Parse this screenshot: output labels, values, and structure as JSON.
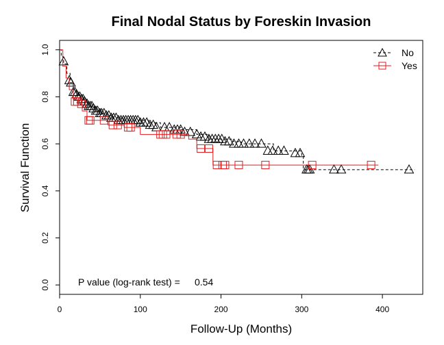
{
  "chart_data": {
    "type": "line",
    "subtype": "kaplan-meier",
    "title": "Final Nodal Status by Foreskin Invasion",
    "xlabel": "Follow-Up (Months)",
    "ylabel": "Survival Function",
    "xlim": [
      0,
      450
    ],
    "ylim": [
      -0.04,
      1.04
    ],
    "xticks": [
      0,
      100,
      200,
      300,
      400
    ],
    "yticks": [
      0.0,
      0.2,
      0.4,
      0.6,
      0.8,
      1.0
    ],
    "xtick_labels": [
      "0",
      "100",
      "200",
      "300",
      "400"
    ],
    "ytick_labels": [
      "0.0",
      "0.2",
      "0.4",
      "0.6",
      "0.8",
      "1.0"
    ],
    "grid": false,
    "legend_position": "top-right",
    "annotation": {
      "label": "P value (log-rank test) =",
      "value": "0.54"
    },
    "series": [
      {
        "name": "No",
        "color": "#000000",
        "line_style": "dashed",
        "marker": "triangle",
        "steps": [
          [
            0,
            1.0
          ],
          [
            2,
            0.97
          ],
          [
            5,
            0.94
          ],
          [
            9,
            0.9
          ],
          [
            13,
            0.86
          ],
          [
            17,
            0.83
          ],
          [
            21,
            0.81
          ],
          [
            26,
            0.79
          ],
          [
            31,
            0.77
          ],
          [
            37,
            0.76
          ],
          [
            43,
            0.74
          ],
          [
            50,
            0.73
          ],
          [
            58,
            0.72
          ],
          [
            66,
            0.71
          ],
          [
            80,
            0.7
          ],
          [
            110,
            0.69
          ],
          [
            125,
            0.67
          ],
          [
            150,
            0.66
          ],
          [
            170,
            0.64
          ],
          [
            185,
            0.62
          ],
          [
            215,
            0.61
          ],
          [
            225,
            0.6
          ],
          [
            265,
            0.57
          ],
          [
            300,
            0.55
          ],
          [
            302,
            0.49
          ],
          [
            440,
            0.49
          ]
        ],
        "censored": [
          [
            5,
            0.95
          ],
          [
            12,
            0.87
          ],
          [
            14,
            0.86
          ],
          [
            17,
            0.82
          ],
          [
            19,
            0.82
          ],
          [
            21,
            0.81
          ],
          [
            23,
            0.8
          ],
          [
            25,
            0.8
          ],
          [
            27,
            0.79
          ],
          [
            29,
            0.79
          ],
          [
            31,
            0.78
          ],
          [
            34,
            0.77
          ],
          [
            36,
            0.76
          ],
          [
            38,
            0.76
          ],
          [
            40,
            0.76
          ],
          [
            42,
            0.75
          ],
          [
            45,
            0.74
          ],
          [
            47,
            0.74
          ],
          [
            50,
            0.73
          ],
          [
            52,
            0.73
          ],
          [
            55,
            0.73
          ],
          [
            58,
            0.72
          ],
          [
            61,
            0.72
          ],
          [
            64,
            0.71
          ],
          [
            67,
            0.71
          ],
          [
            70,
            0.71
          ],
          [
            73,
            0.7
          ],
          [
            76,
            0.7
          ],
          [
            79,
            0.7
          ],
          [
            82,
            0.7
          ],
          [
            85,
            0.7
          ],
          [
            88,
            0.7
          ],
          [
            91,
            0.7
          ],
          [
            94,
            0.7
          ],
          [
            97,
            0.7
          ],
          [
            100,
            0.69
          ],
          [
            104,
            0.69
          ],
          [
            108,
            0.69
          ],
          [
            112,
            0.68
          ],
          [
            116,
            0.68
          ],
          [
            120,
            0.67
          ],
          [
            130,
            0.67
          ],
          [
            136,
            0.67
          ],
          [
            142,
            0.66
          ],
          [
            146,
            0.66
          ],
          [
            150,
            0.66
          ],
          [
            155,
            0.65
          ],
          [
            162,
            0.65
          ],
          [
            170,
            0.64
          ],
          [
            175,
            0.63
          ],
          [
            180,
            0.63
          ],
          [
            185,
            0.62
          ],
          [
            189,
            0.62
          ],
          [
            193,
            0.62
          ],
          [
            197,
            0.62
          ],
          [
            201,
            0.62
          ],
          [
            205,
            0.61
          ],
          [
            210,
            0.61
          ],
          [
            216,
            0.6
          ],
          [
            222,
            0.6
          ],
          [
            228,
            0.6
          ],
          [
            235,
            0.6
          ],
          [
            242,
            0.6
          ],
          [
            250,
            0.6
          ],
          [
            258,
            0.57
          ],
          [
            264,
            0.57
          ],
          [
            271,
            0.57
          ],
          [
            278,
            0.57
          ],
          [
            292,
            0.56
          ],
          [
            298,
            0.56
          ],
          [
            306,
            0.49
          ],
          [
            308,
            0.49
          ],
          [
            310,
            0.49
          ],
          [
            340,
            0.49
          ],
          [
            349,
            0.49
          ],
          [
            433,
            0.49
          ]
        ]
      },
      {
        "name": "Yes",
        "color": "#e41a1c",
        "line_style": "solid",
        "marker": "square",
        "steps": [
          [
            0,
            1.0
          ],
          [
            4,
            0.93
          ],
          [
            8,
            0.88
          ],
          [
            12,
            0.83
          ],
          [
            17,
            0.79
          ],
          [
            22,
            0.77
          ],
          [
            28,
            0.74
          ],
          [
            34,
            0.7
          ],
          [
            45,
            0.7
          ],
          [
            60,
            0.68
          ],
          [
            80,
            0.67
          ],
          [
            100,
            0.64
          ],
          [
            120,
            0.64
          ],
          [
            160,
            0.62
          ],
          [
            170,
            0.58
          ],
          [
            190,
            0.51
          ],
          [
            230,
            0.51
          ],
          [
            260,
            0.51
          ],
          [
            305,
            0.51
          ],
          [
            310,
            0.51
          ],
          [
            395,
            0.51
          ]
        ],
        "censored": [
          [
            19,
            0.78
          ],
          [
            22,
            0.78
          ],
          [
            27,
            0.77
          ],
          [
            36,
            0.7
          ],
          [
            38,
            0.7
          ],
          [
            55,
            0.7
          ],
          [
            66,
            0.68
          ],
          [
            72,
            0.68
          ],
          [
            85,
            0.67
          ],
          [
            88,
            0.67
          ],
          [
            125,
            0.64
          ],
          [
            128,
            0.64
          ],
          [
            132,
            0.64
          ],
          [
            145,
            0.64
          ],
          [
            150,
            0.64
          ],
          [
            175,
            0.58
          ],
          [
            185,
            0.58
          ],
          [
            195,
            0.51
          ],
          [
            202,
            0.51
          ],
          [
            205,
            0.51
          ],
          [
            222,
            0.51
          ],
          [
            255,
            0.51
          ],
          [
            313,
            0.51
          ],
          [
            386,
            0.51
          ]
        ]
      }
    ]
  }
}
